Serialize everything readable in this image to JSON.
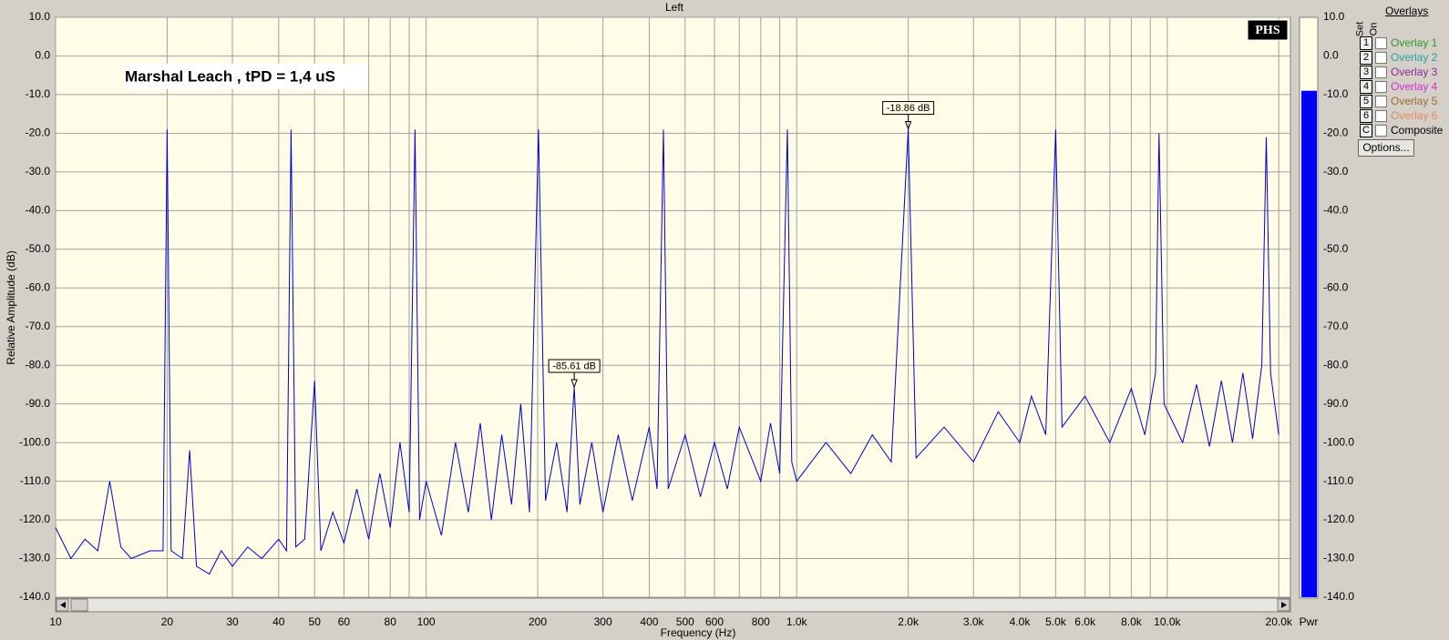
{
  "chart_data": {
    "type": "line",
    "title": "Left",
    "x_label": "Frequency (Hz)",
    "y_label": "Relative Amplitude (dB)",
    "annotation": "Marshal Leach , tPD = 1,4 uS",
    "logo": "PHS",
    "color": "#0000cc",
    "log_x": true,
    "grid": true,
    "xlim": [
      10,
      21500
    ],
    "ylim": [
      -140,
      10
    ],
    "x": [
      10,
      11,
      12,
      13,
      14,
      15,
      16,
      18,
      19.5,
      20,
      20.5,
      22,
      23,
      24,
      26,
      28,
      30,
      33,
      36,
      40,
      42,
      43.2,
      44.5,
      47,
      50,
      52,
      56,
      60,
      65,
      70,
      75,
      80,
      85,
      90,
      93.3,
      96,
      100,
      110,
      120,
      130,
      140,
      150,
      160,
      170,
      180,
      190,
      201,
      210,
      225,
      240,
      251,
      260,
      280,
      300,
      330,
      360,
      400,
      420,
      437,
      450,
      500,
      550,
      600,
      650,
      700,
      800,
      850,
      900,
      944,
      970,
      1000,
      1200,
      1400,
      1600,
      1800,
      2000,
      2100,
      2500,
      3000,
      3500,
      4000,
      4300,
      4700,
      5000,
      5200,
      6000,
      7000,
      8000,
      8700,
      9300,
      9500,
      9800,
      11000,
      12000,
      13000,
      14000,
      15000,
      16000,
      17000,
      18000,
      18500,
      19000,
      20000
    ],
    "values": [
      -122,
      -130,
      -125,
      -128,
      -110,
      -127,
      -130,
      -128,
      -128,
      -19,
      -128,
      -130,
      -102,
      -132,
      -134,
      -128,
      -132,
      -127,
      -130,
      -125,
      -128,
      -19,
      -127,
      -125,
      -84,
      -128,
      -118,
      -126,
      -112,
      -125,
      -108,
      -122,
      -100,
      -118,
      -19,
      -120,
      -110,
      -124,
      -100,
      -118,
      -95,
      -120,
      -98,
      -116,
      -90,
      -118,
      -19,
      -115,
      -100,
      -118,
      -85.61,
      -116,
      -100,
      -118,
      -98,
      -115,
      -96,
      -112,
      -19,
      -112,
      -98,
      -114,
      -100,
      -112,
      -96,
      -110,
      -95,
      -108,
      -19,
      -105,
      -110,
      -100,
      -108,
      -98,
      -105,
      -18.86,
      -104,
      -96,
      -105,
      -92,
      -100,
      -88,
      -98,
      -19,
      -96,
      -88,
      -100,
      -86,
      -98,
      -82,
      -20,
      -90,
      -100,
      -85,
      -101,
      -84,
      -100,
      -82,
      -99,
      -80,
      -21,
      -82,
      -98
    ],
    "annotations": [
      {
        "label": "-85.61 dB",
        "x": 251,
        "value": -85.61
      },
      {
        "label": "-18.86 dB",
        "x": 2000,
        "value": -18.86
      }
    ],
    "yticks": [
      {
        "value": 10,
        "label": "10.0"
      },
      {
        "value": 0,
        "label": "0.0"
      },
      {
        "value": -10,
        "label": "-10.0"
      },
      {
        "value": -20,
        "label": "-20.0"
      },
      {
        "value": -30,
        "label": "-30.0"
      },
      {
        "value": -40,
        "label": "-40.0"
      },
      {
        "value": -50,
        "label": "-50.0"
      },
      {
        "value": -60,
        "label": "-60.0"
      },
      {
        "value": -70,
        "label": "-70.0"
      },
      {
        "value": -80,
        "label": "-80.0"
      },
      {
        "value": -90,
        "label": "-90.0"
      },
      {
        "value": -100,
        "label": "-100.0"
      },
      {
        "value": -110,
        "label": "-110.0"
      },
      {
        "value": -120,
        "label": "-120.0"
      },
      {
        "value": -130,
        "label": "-130.0"
      },
      {
        "value": -140,
        "label": "-140.0"
      }
    ],
    "xticks": [
      10,
      20,
      30,
      40,
      50,
      60,
      80,
      100,
      200,
      300,
      400,
      500,
      600,
      800,
      {
        "value": 1000,
        "label": "1.0k"
      },
      {
        "value": 2000,
        "label": "2.0k"
      },
      {
        "value": 3000,
        "label": "3.0k"
      },
      {
        "value": 4000,
        "label": "4.0k"
      },
      {
        "value": 5000,
        "label": "5.0k"
      },
      {
        "value": 6000,
        "label": "6.0k"
      },
      {
        "value": 8000,
        "label": "8.0k"
      },
      {
        "value": 10000,
        "label": "10.0k"
      },
      {
        "value": 20000,
        "label": "20.0k"
      }
    ],
    "xminor_ticks": [
      70,
      90,
      700,
      900,
      7000,
      9000
    ],
    "meter": {
      "label": "Pwr",
      "value": -9,
      "color": "#0000ff"
    }
  },
  "overlays": {
    "title": "Overlays",
    "set_label": "Set",
    "on_label": "On",
    "items": [
      {
        "key": "1",
        "name": "Overlay 1",
        "color": "#2a9a2a"
      },
      {
        "key": "2",
        "name": "Overlay 2",
        "color": "#2aa0a0"
      },
      {
        "key": "3",
        "name": "Overlay 3",
        "color": "#8a2a9a"
      },
      {
        "key": "4",
        "name": "Overlay 4",
        "color": "#d030d0"
      },
      {
        "key": "5",
        "name": "Overlay 5",
        "color": "#9a6a3a"
      },
      {
        "key": "6",
        "name": "Overlay 6",
        "color": "#e08a60"
      },
      {
        "key": "C",
        "name": "Composite",
        "color": "#000000"
      }
    ],
    "button": "Options..."
  }
}
